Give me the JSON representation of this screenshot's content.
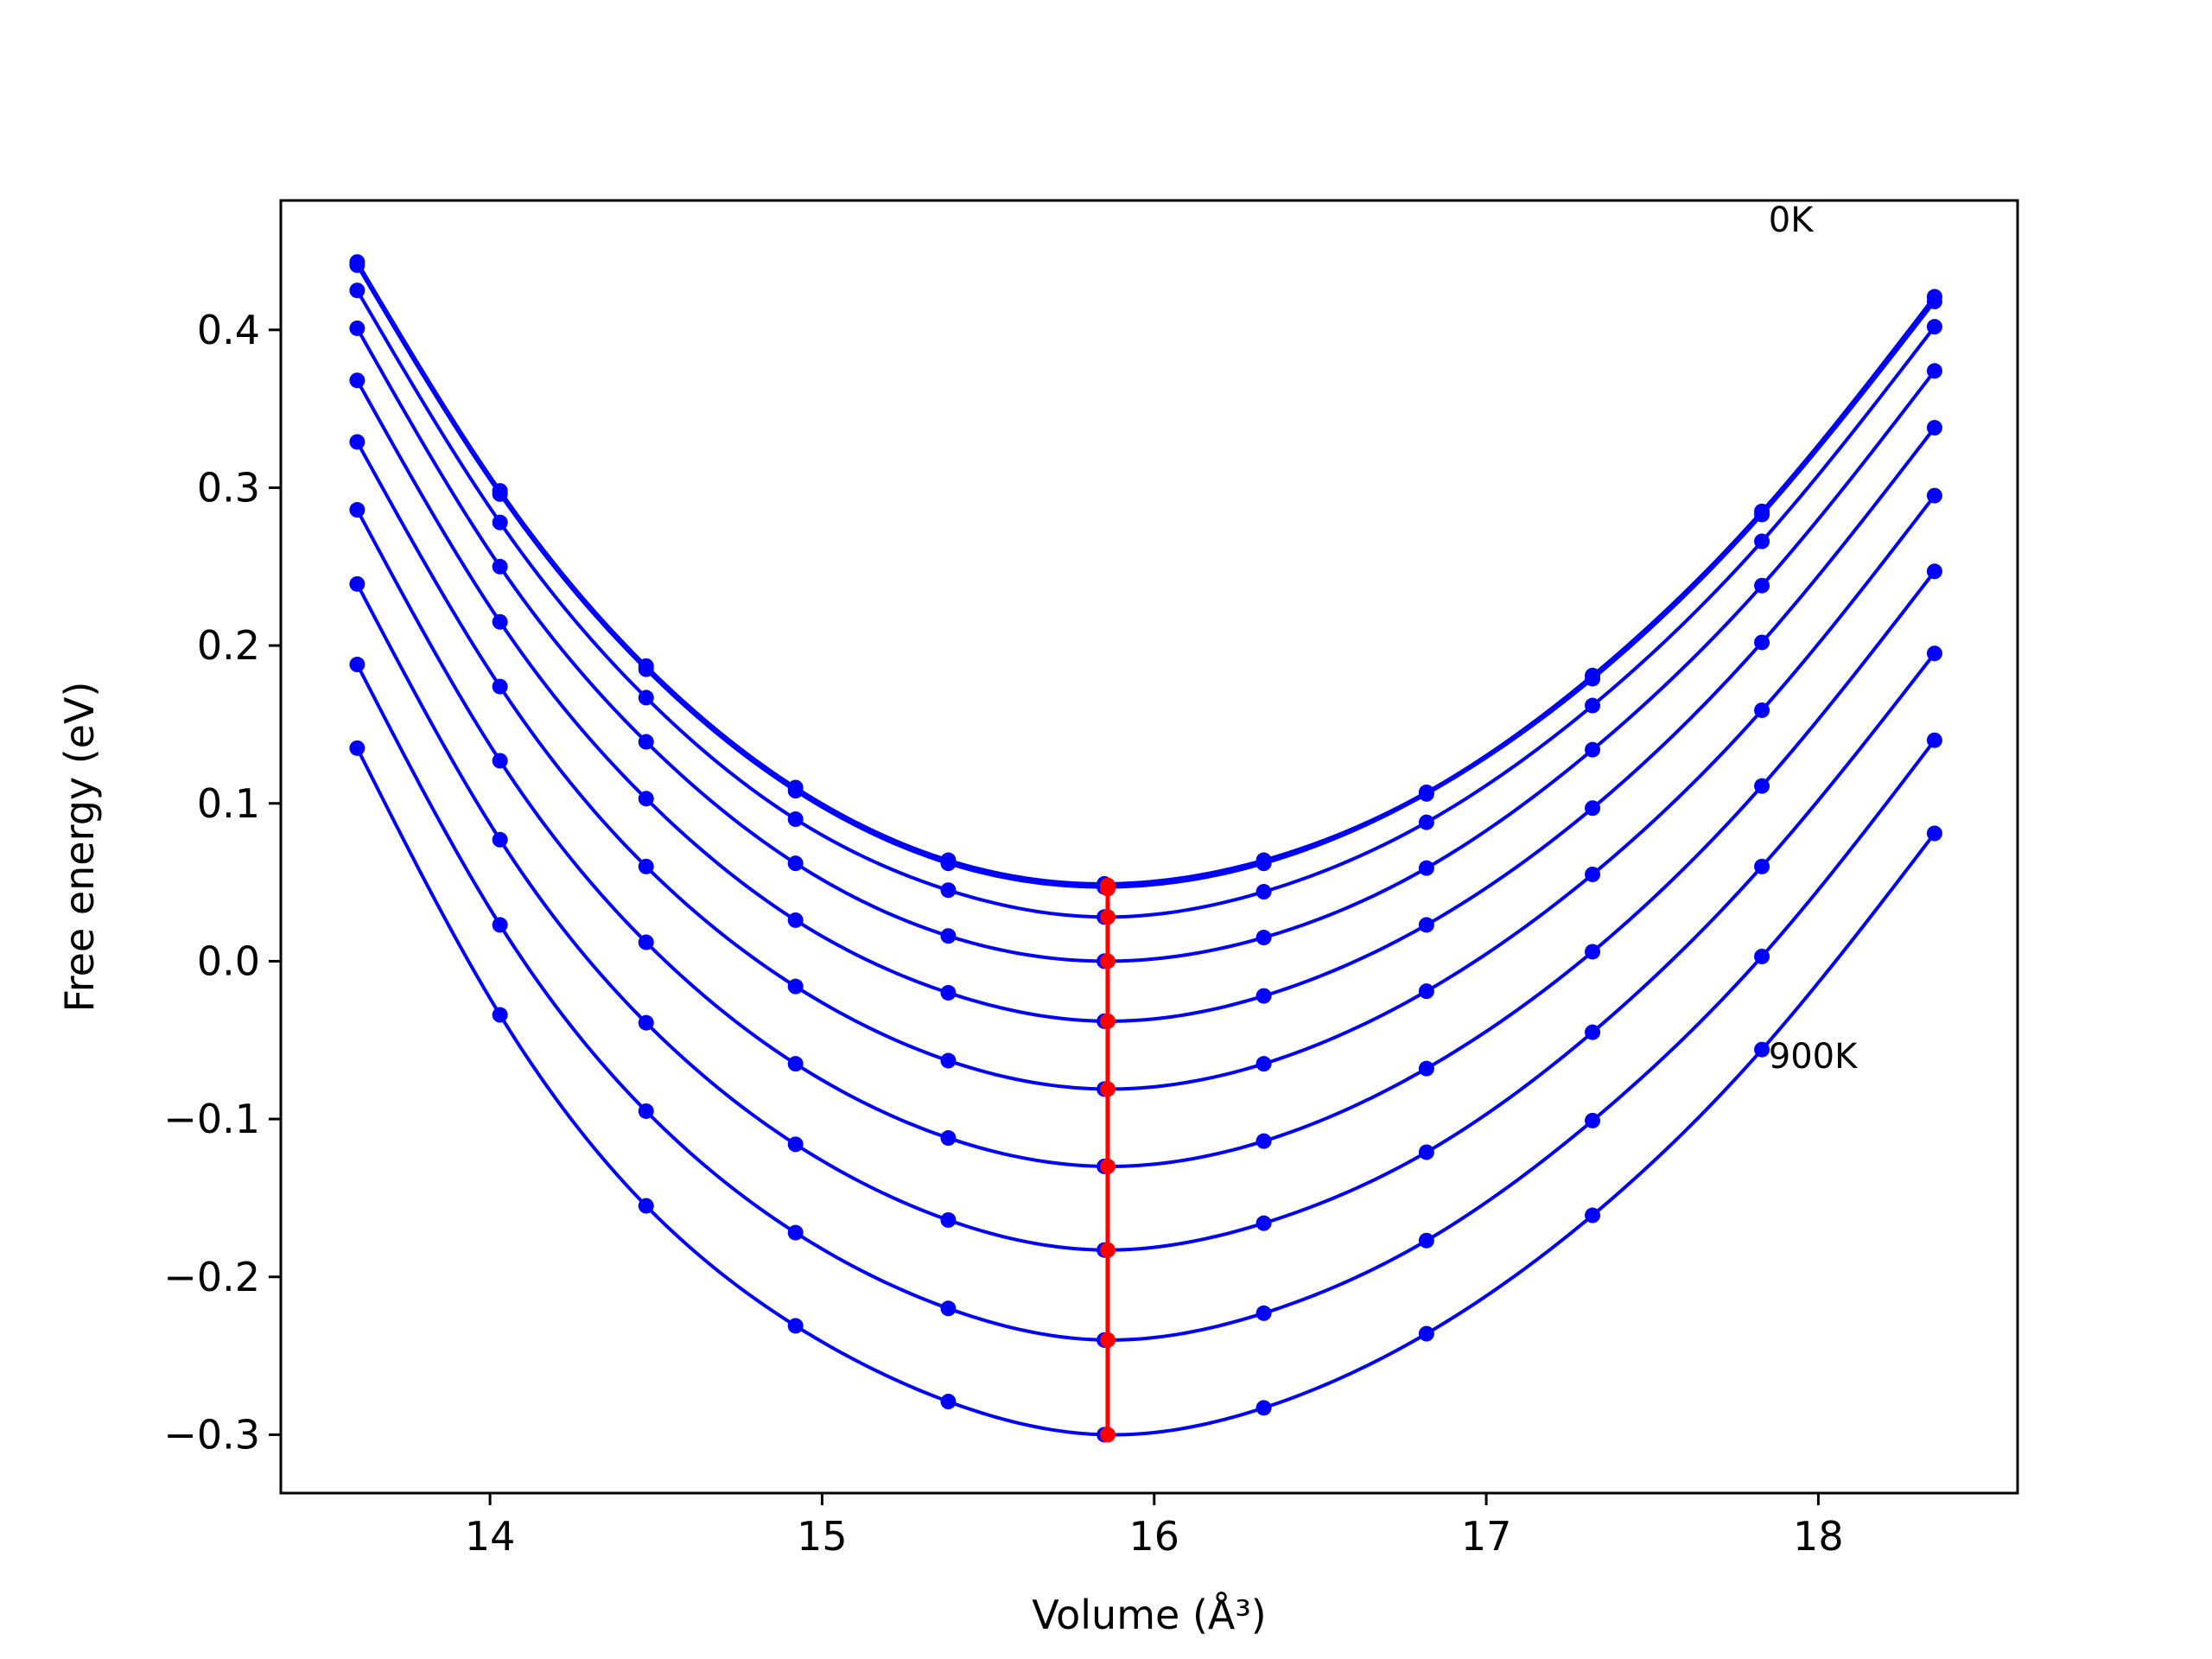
{
  "chart_data": {
    "type": "line",
    "title": "",
    "xlabel": "Volume (Å³)",
    "ylabel": "Free energy (eV)",
    "xlim": [
      13.37,
      18.6
    ],
    "ylim": [
      -0.337,
      0.482
    ],
    "xticks": [
      14,
      15,
      16,
      17,
      18
    ],
    "yticks": [
      -0.3,
      -0.2,
      -0.1,
      0.0,
      0.1,
      0.2,
      0.3,
      0.4
    ],
    "ytick_labels": [
      "−0.3",
      "−0.2",
      "−0.1",
      "0.0",
      "0.1",
      "0.2",
      "0.3",
      "0.4"
    ],
    "grid": false,
    "legend": null,
    "colors": {
      "curves": "#0000ff",
      "minima": "#ff0000",
      "frame": "#000000"
    },
    "annotations": [
      {
        "text": "0K",
        "x": 17.85,
        "y": 0.47
      },
      {
        "text": "900K",
        "x": 17.85,
        "y": -0.06
      }
    ],
    "volumes": [
      13.6,
      14.03,
      14.47,
      14.92,
      15.38,
      15.85,
      16.33,
      16.82,
      17.32,
      17.83,
      18.35
    ],
    "series": [
      {
        "values": [
          0.443,
          0.298,
          0.187,
          0.11,
          0.064,
          0.049,
          0.064,
          0.107,
          0.181,
          0.285,
          0.421
        ]
      },
      {
        "values": [
          0.441,
          0.296,
          0.185,
          0.108,
          0.062,
          0.047,
          0.062,
          0.106,
          0.179,
          0.283,
          0.418
        ]
      },
      {
        "values": [
          0.425,
          0.278,
          0.167,
          0.09,
          0.045,
          0.028,
          0.044,
          0.088,
          0.162,
          0.266,
          0.402
        ]
      },
      {
        "values": [
          0.401,
          0.25,
          0.139,
          0.062,
          0.016,
          0.0,
          0.015,
          0.059,
          0.134,
          0.238,
          0.374
        ]
      },
      {
        "values": [
          0.368,
          0.215,
          0.103,
          0.026,
          -0.02,
          -0.038,
          -0.022,
          0.023,
          0.097,
          0.202,
          0.338
        ]
      },
      {
        "values": [
          0.329,
          0.174,
          0.06,
          -0.016,
          -0.063,
          -0.081,
          -0.065,
          -0.019,
          0.055,
          0.159,
          0.295
        ]
      },
      {
        "values": [
          0.286,
          0.127,
          0.012,
          -0.065,
          -0.112,
          -0.13,
          -0.114,
          -0.068,
          0.006,
          0.111,
          0.247
        ]
      },
      {
        "values": [
          0.239,
          0.077,
          -0.039,
          -0.116,
          -0.164,
          -0.183,
          -0.166,
          -0.121,
          -0.045,
          0.06,
          0.195
        ]
      },
      {
        "values": [
          0.188,
          0.023,
          -0.095,
          -0.172,
          -0.22,
          -0.24,
          -0.223,
          -0.177,
          -0.101,
          0.003,
          0.14
        ]
      },
      {
        "values": [
          0.135,
          -0.034,
          -0.155,
          -0.231,
          -0.279,
          -0.3,
          -0.283,
          -0.236,
          -0.161,
          -0.056,
          0.081
        ]
      }
    ],
    "minima": {
      "x": [
        15.86,
        15.86,
        15.86,
        15.86,
        15.86,
        15.86,
        15.86,
        15.86,
        15.86,
        15.86
      ],
      "y": [
        0.048,
        0.046,
        0.028,
        0.0,
        -0.038,
        -0.081,
        -0.13,
        -0.183,
        -0.24,
        -0.3
      ]
    }
  }
}
